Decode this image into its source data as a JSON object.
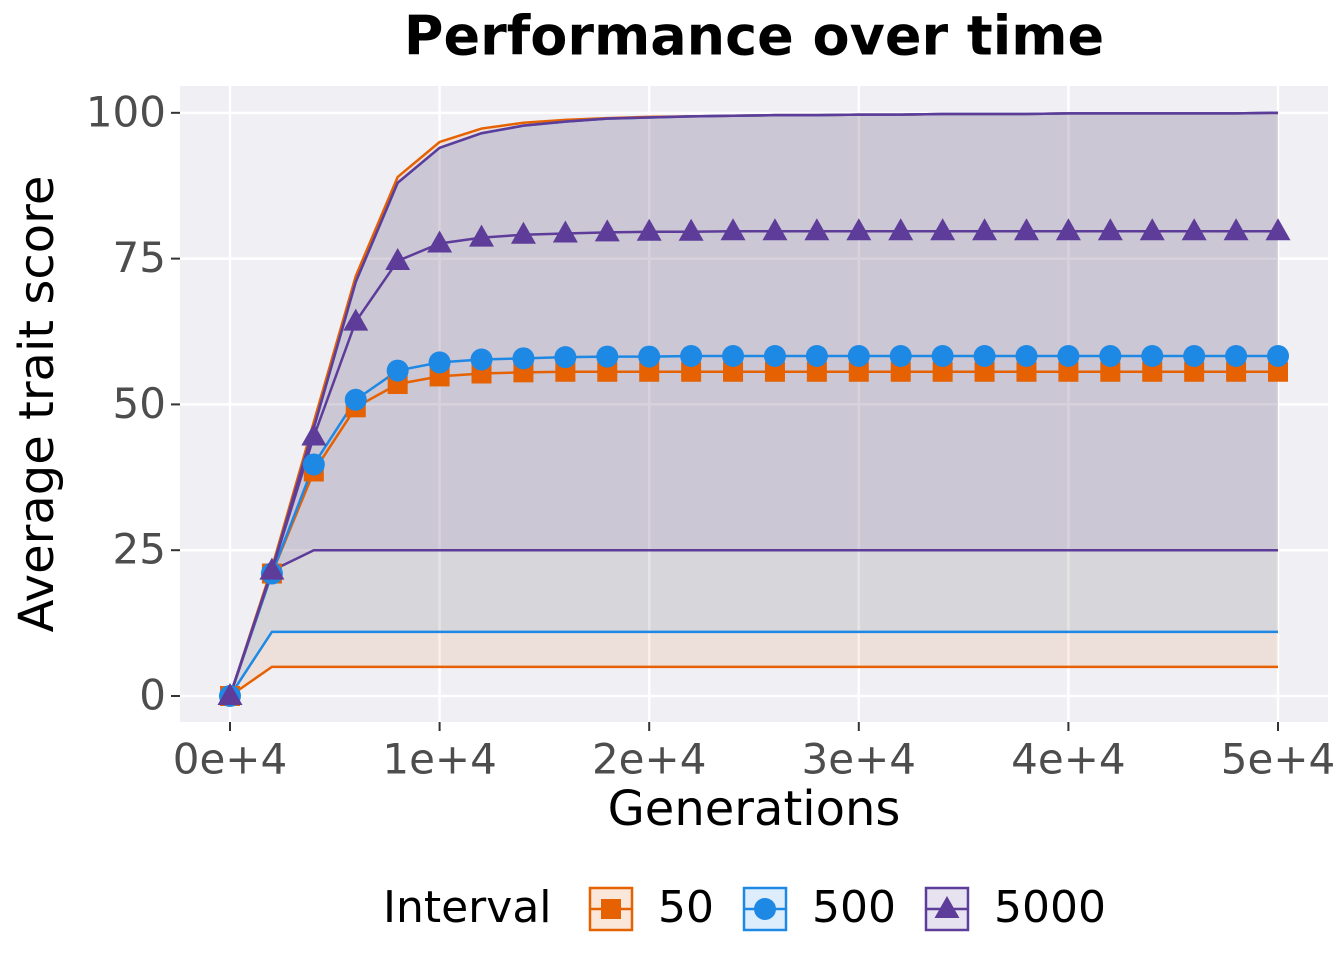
{
  "chart_data": {
    "type": "line",
    "title": "Performance over time",
    "x_label": "Generations",
    "y_label": "Average trait score",
    "x": [
      0,
      2000,
      4000,
      6000,
      8000,
      10000,
      12000,
      14000,
      16000,
      18000,
      20000,
      22000,
      24000,
      26000,
      28000,
      30000,
      32000,
      34000,
      36000,
      38000,
      40000,
      42000,
      44000,
      46000,
      48000,
      50000
    ],
    "series": [
      {
        "name": "50",
        "color": "#e66101",
        "marker": "square",
        "values": [
          0,
          21,
          38.5,
          49.5,
          53.5,
          54.8,
          55.3,
          55.5,
          55.6,
          55.6,
          55.6,
          55.6,
          55.6,
          55.6,
          55.6,
          55.6,
          55.6,
          55.6,
          55.6,
          55.6,
          55.6,
          55.6,
          55.6,
          55.6,
          55.6,
          55.6
        ],
        "lower": [
          0,
          5,
          5,
          5,
          5,
          5,
          5,
          5,
          5,
          5,
          5,
          5,
          5,
          5,
          5,
          5,
          5,
          5,
          5,
          5,
          5,
          5,
          5,
          5,
          5,
          5
        ],
        "upper": [
          0,
          22,
          47,
          72,
          89,
          95,
          97.3,
          98.3,
          98.8,
          99.1,
          99.3,
          99.4,
          99.5,
          99.6,
          99.6,
          99.7,
          99.7,
          99.8,
          99.8,
          99.8,
          99.9,
          99.9,
          99.9,
          99.9,
          99.9,
          100
        ]
      },
      {
        "name": "500",
        "color": "#1e88e5",
        "marker": "circle",
        "values": [
          0,
          21,
          39.7,
          50.8,
          55.8,
          57.2,
          57.7,
          57.9,
          58.1,
          58.2,
          58.2,
          58.3,
          58.3,
          58.3,
          58.3,
          58.3,
          58.3,
          58.3,
          58.3,
          58.3,
          58.3,
          58.3,
          58.3,
          58.3,
          58.3,
          58.3
        ],
        "lower": [
          0,
          11,
          11,
          11,
          11,
          11,
          11,
          11,
          11,
          11,
          11,
          11,
          11,
          11,
          11,
          11,
          11,
          11,
          11,
          11,
          11,
          11,
          11,
          11,
          11,
          11
        ],
        "upper": [
          0,
          21.5,
          46,
          71,
          88,
          94,
          96.5,
          97.8,
          98.5,
          99,
          99.2,
          99.4,
          99.5,
          99.6,
          99.6,
          99.7,
          99.7,
          99.8,
          99.8,
          99.8,
          99.9,
          99.9,
          99.9,
          99.9,
          99.9,
          100
        ]
      },
      {
        "name": "5000",
        "color": "#5e3c99",
        "marker": "triangle",
        "values": [
          0,
          21.5,
          44.5,
          64.2,
          74.6,
          77.6,
          78.6,
          79.1,
          79.3,
          79.5,
          79.6,
          79.6,
          79.7,
          79.7,
          79.7,
          79.7,
          79.7,
          79.7,
          79.7,
          79.7,
          79.7,
          79.7,
          79.7,
          79.7,
          79.7,
          79.7
        ],
        "lower": [
          0,
          21.5,
          25,
          25,
          25,
          25,
          25,
          25,
          25,
          25,
          25,
          25,
          25,
          25,
          25,
          25,
          25,
          25,
          25,
          25,
          25,
          25,
          25,
          25,
          25,
          25
        ],
        "upper": [
          0,
          21.5,
          46,
          71,
          88,
          94,
          96.5,
          97.8,
          98.5,
          99,
          99.2,
          99.4,
          99.5,
          99.6,
          99.6,
          99.7,
          99.7,
          99.8,
          99.8,
          99.8,
          99.9,
          99.9,
          99.9,
          99.9,
          99.9,
          100
        ]
      }
    ],
    "xlim": [
      -2385,
      52385
    ],
    "xticks": [
      {
        "value": 0,
        "label": "0e+4"
      },
      {
        "value": 10000,
        "label": "1e+4"
      },
      {
        "value": 20000,
        "label": "2e+4"
      },
      {
        "value": 30000,
        "label": "3e+4"
      },
      {
        "value": 40000,
        "label": "4e+4"
      },
      {
        "value": 50000,
        "label": "5e+4"
      }
    ],
    "ylim": [
      -4.46,
      104.6
    ],
    "yticks": [
      0,
      25,
      50,
      75,
      100
    ],
    "grid": true,
    "legend_title": "Interval",
    "legend_position": "bottom"
  }
}
